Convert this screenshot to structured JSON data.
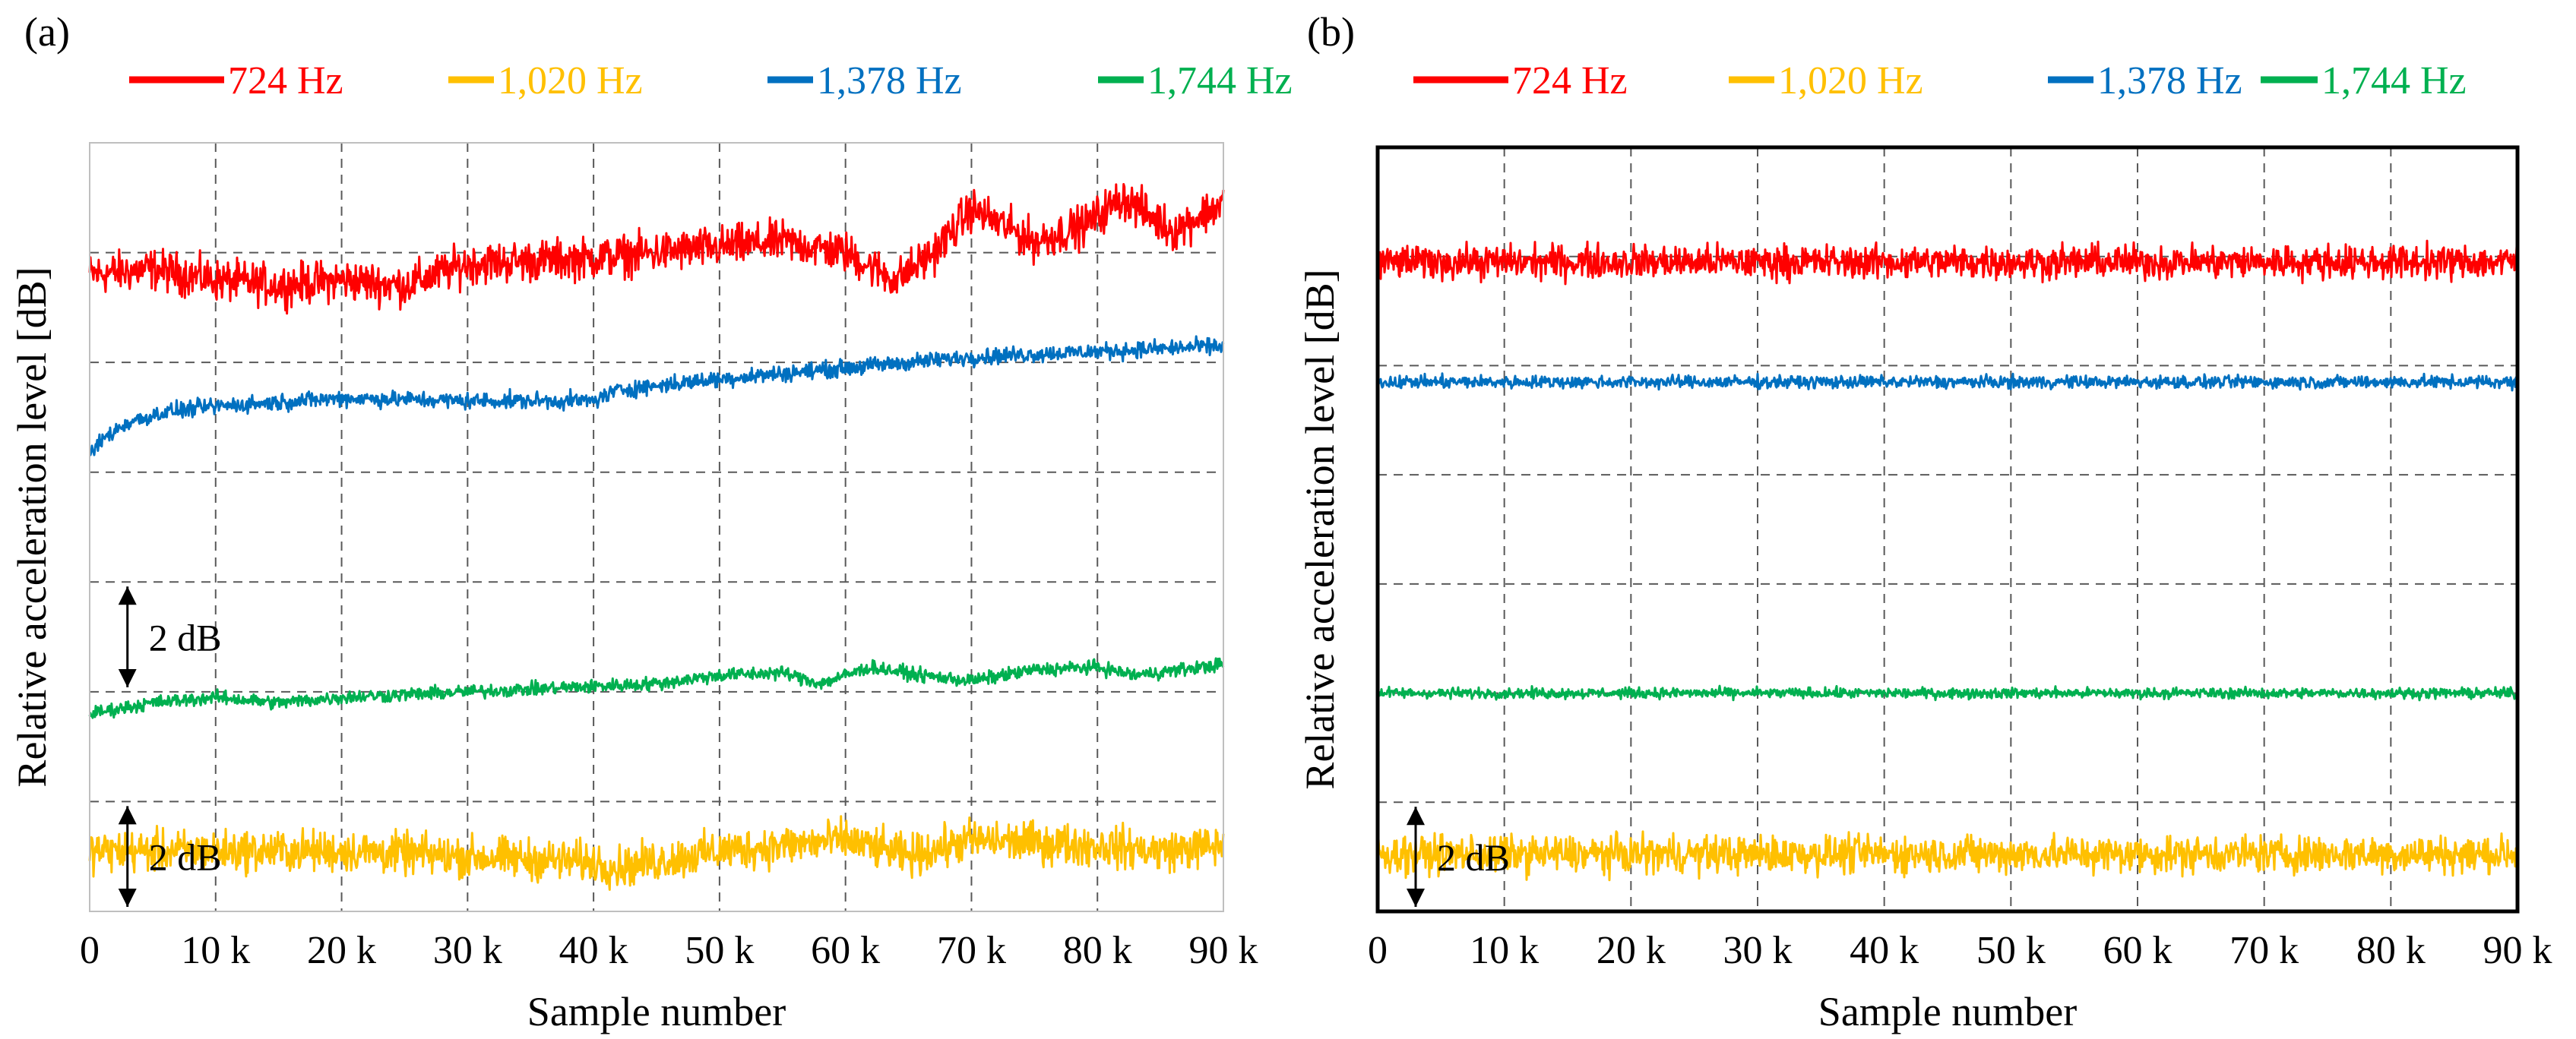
{
  "chart_data": [
    {
      "type": "line",
      "panel_label": "(a)",
      "xlabel": "Sample number",
      "ylabel": "Relative acceleration level [dB]",
      "x_ticks": [
        "0",
        "10 k",
        "20 k",
        "30 k",
        "40 k",
        "50 k",
        "60 k",
        "70 k",
        "80 k",
        "90 k"
      ],
      "xlim": [
        0,
        90000
      ],
      "ylim": [
        0,
        14
      ],
      "grid": true,
      "legend": [
        "724 Hz",
        "1,020 Hz",
        "1,378 Hz",
        "1,744 Hz"
      ],
      "scale_bars": [
        {
          "label": "2 dB",
          "x": 3000,
          "y_from": 6,
          "y_to": 4
        },
        {
          "label": "2 dB",
          "x": 3000,
          "y_from": 2,
          "y_to": 0
        }
      ],
      "series": [
        {
          "name": "724 Hz",
          "color": "#ff0000",
          "noise_db": 0.55,
          "x": [
            0,
            5000,
            10000,
            15000,
            20000,
            25000,
            30000,
            40000,
            50000,
            55000,
            60000,
            64000,
            67000,
            70000,
            75000,
            79000,
            82000,
            86000,
            90000
          ],
          "y": [
            11.6,
            11.7,
            11.5,
            11.4,
            11.5,
            11.4,
            11.8,
            11.9,
            12.1,
            12.2,
            12.0,
            11.5,
            12.0,
            12.8,
            12.2,
            12.5,
            13.0,
            12.4,
            12.9
          ]
        },
        {
          "name": "1,020 Hz",
          "color": "#ffc000",
          "noise_db": 0.55,
          "x": [
            0,
            10000,
            20000,
            30000,
            40000,
            42000,
            50000,
            60000,
            65000,
            70000,
            80000,
            85000,
            90000
          ],
          "y": [
            1.1,
            1.1,
            1.1,
            1.0,
            0.9,
            0.8,
            1.1,
            1.3,
            1.0,
            1.3,
            1.2,
            1.1,
            1.2
          ]
        },
        {
          "name": "1,378 Hz",
          "color": "#0070c0",
          "noise_db": 0.22,
          "x": [
            0,
            1000,
            3000,
            6000,
            10000,
            20000,
            30000,
            40000,
            42000,
            50000,
            60000,
            70000,
            80000,
            90000
          ],
          "y": [
            8.3,
            8.6,
            8.9,
            9.1,
            9.2,
            9.35,
            9.3,
            9.3,
            9.5,
            9.7,
            9.9,
            10.1,
            10.2,
            10.3
          ]
        },
        {
          "name": "1,744 Hz",
          "color": "#00b050",
          "noise_db": 0.18,
          "x": [
            0,
            5000,
            10000,
            15000,
            20000,
            30000,
            40000,
            45000,
            50000,
            55000,
            58000,
            62000,
            66000,
            70000,
            75000,
            80000,
            83000,
            90000
          ],
          "y": [
            3.6,
            3.8,
            3.9,
            3.8,
            3.9,
            4.0,
            4.1,
            4.15,
            4.3,
            4.35,
            4.15,
            4.45,
            4.3,
            4.2,
            4.4,
            4.45,
            4.3,
            4.5
          ]
        }
      ]
    },
    {
      "type": "line",
      "panel_label": "(b)",
      "xlabel": "Sample number",
      "ylabel": "Relative acceleration level [dB]",
      "x_ticks": [
        "0",
        "10 k",
        "20 k",
        "30 k",
        "40 k",
        "50 k",
        "60 k",
        "70 k",
        "80 k",
        "90 k"
      ],
      "xlim": [
        0,
        90000
      ],
      "ylim": [
        0,
        14
      ],
      "grid": true,
      "legend": [
        "724 Hz",
        "1,020 Hz",
        "1,378 Hz",
        "1,744 Hz"
      ],
      "scale_bars": [
        {
          "label": "2 dB",
          "x": 3000,
          "y_from": 2,
          "y_to": 0
        }
      ],
      "series": [
        {
          "name": "724 Hz",
          "color": "#ff0000",
          "noise_db": 0.45,
          "x": [
            0,
            90000
          ],
          "y": [
            11.9,
            11.9
          ]
        },
        {
          "name": "1,020 Hz",
          "color": "#ffc000",
          "noise_db": 0.5,
          "x": [
            0,
            90000
          ],
          "y": [
            1.05,
            1.05
          ]
        },
        {
          "name": "1,378 Hz",
          "color": "#0070c0",
          "noise_db": 0.17,
          "x": [
            0,
            90000
          ],
          "y": [
            9.7,
            9.7
          ]
        },
        {
          "name": "1,744 Hz",
          "color": "#00b050",
          "noise_db": 0.14,
          "x": [
            0,
            90000
          ],
          "y": [
            4.0,
            4.0
          ]
        }
      ]
    }
  ]
}
